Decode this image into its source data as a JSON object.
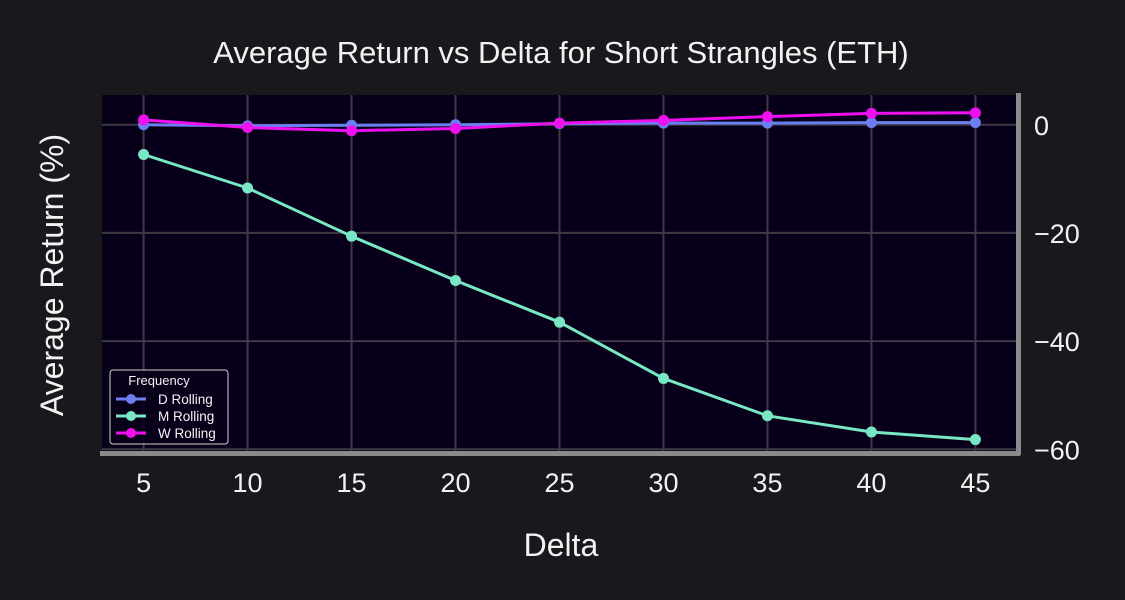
{
  "chart_data": {
    "type": "line",
    "title": "Average Return vs Delta for Short Strangles (ETH)",
    "xlabel": "Delta",
    "ylabel": "Average Return (%)",
    "x": [
      5,
      10,
      15,
      20,
      25,
      30,
      35,
      40,
      45
    ],
    "x_ticks": [
      "5",
      "10",
      "15",
      "20",
      "25",
      "30",
      "35",
      "40",
      "45"
    ],
    "xlim": [
      3,
      47
    ],
    "ylim": [
      -60.5,
      5.5
    ],
    "y_ticks": [
      0,
      -20,
      -40,
      -60
    ],
    "y_tick_labels": [
      "0",
      "−20",
      "−40",
      "−60"
    ],
    "y_axis_side": "right",
    "grid": true,
    "legend": {
      "title": "Frequency",
      "position": "bottom-left"
    },
    "series": [
      {
        "name": "D Rolling",
        "color": "#6b7ff0",
        "values": [
          0.0,
          -0.2,
          -0.1,
          0.0,
          0.2,
          0.3,
          0.3,
          0.4,
          0.4
        ]
      },
      {
        "name": "M Rolling",
        "color": "#78e8c4",
        "values": [
          -5.5,
          -11.7,
          -20.6,
          -28.8,
          -36.5,
          -46.9,
          -53.8,
          -56.8,
          -58.2
        ]
      },
      {
        "name": "W Rolling",
        "color": "#ee11ee",
        "values": [
          0.9,
          -0.5,
          -1.1,
          -0.7,
          0.3,
          0.8,
          1.5,
          2.1,
          2.2
        ]
      }
    ],
    "colors": {
      "page_background": "#19181d",
      "plot_background": "#08001a",
      "grid": "#3e3a44",
      "spine": "#8a8a8a",
      "text": "#f2f2f2"
    }
  }
}
